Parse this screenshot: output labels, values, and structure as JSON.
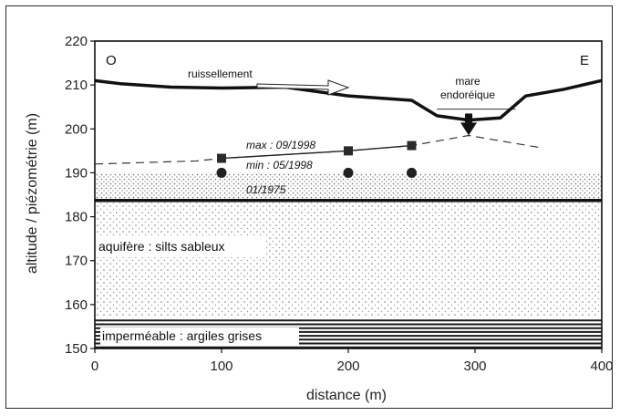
{
  "chart_data": {
    "type": "line",
    "xlabel": "distance (m)",
    "ylabel": "altitude / piézométrie (m)",
    "xlim": [
      0,
      400
    ],
    "ylim": [
      150,
      220
    ],
    "xticks": [
      "0",
      "100",
      "200",
      "300",
      "400"
    ],
    "yticks": [
      "150",
      "160",
      "170",
      "180",
      "190",
      "200",
      "210",
      "220"
    ],
    "series": [
      {
        "name": "ground",
        "x": [
          0,
          20,
          60,
          100,
          150,
          200,
          250,
          270,
          295,
          320,
          340,
          370,
          400
        ],
        "y": [
          211,
          210.3,
          209.5,
          209.3,
          209.5,
          207.5,
          206.5,
          203,
          202,
          202.5,
          207.5,
          209,
          211
        ]
      },
      {
        "name": "max : 09/1998",
        "x": [
          100,
          200,
          250
        ],
        "y": [
          193.3,
          195,
          196.2
        ]
      },
      {
        "name": "min : 05/1998",
        "x": [
          100,
          200,
          250
        ],
        "y": [
          190,
          190,
          190
        ]
      },
      {
        "name": "01/1975",
        "x": [
          0,
          400
        ],
        "y": [
          183.7,
          183.7
        ]
      },
      {
        "name": "dashed",
        "x": [
          0,
          80,
          100,
          200,
          250,
          295,
          350
        ],
        "y": [
          192,
          192.7,
          193.3,
          195,
          196.2,
          198.5,
          195.8
        ]
      }
    ],
    "layers": {
      "top_dots": [
        183.7,
        190
      ],
      "aquifer": [
        157,
        183.7
      ],
      "impermeable": [
        150,
        157
      ]
    },
    "annotations": {
      "west": "O",
      "east": "E",
      "runoff": "ruissellement",
      "pond_line1": "mare",
      "pond_line2": "endoréique",
      "max": "max : 09/1998",
      "min": "min : 05/1998",
      "y1975": "01/1975",
      "aquifer": "aquifère : silts sableux",
      "impermeable": "imperméable : argiles grises"
    },
    "colors": {
      "line": "#1a1a1a",
      "dots": "#555555"
    }
  }
}
